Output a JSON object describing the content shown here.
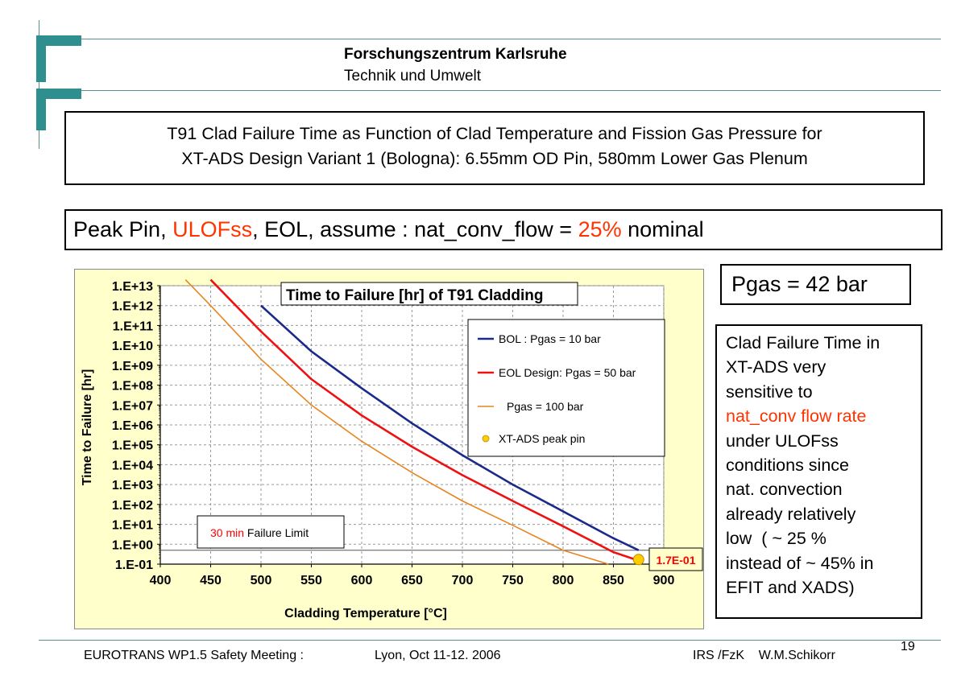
{
  "header": {
    "org_name": "Forschungszentrum Karlsruhe",
    "org_sub": "Technik und Umwelt"
  },
  "title": {
    "line1": "T91 Clad Failure Time as Function of Clad Temperature and Fission Gas Pressure for",
    "line2": "XT-ADS Design Variant 1 (Bologna): 6.55mm OD Pin, 580mm Lower Gas Plenum"
  },
  "subtitle": {
    "part1": "Peak Pin, ",
    "part2": "ULOFss",
    "part3": ", EOL, assume : nat_conv_flow = ",
    "part4": "25%",
    "part5": " nominal"
  },
  "pgas_label": "Pgas = 42 bar",
  "note": {
    "line1": "Clad Failure Time in",
    "line2": "XT-ADS very",
    "line3": "sensitive to",
    "line4": "nat_conv flow rate",
    "line5": "under ULOFss",
    "line6": "conditions since",
    "line7": "nat. convection",
    "line8": "already relatively",
    "line9": "low  ( ~ 25 %",
    "line10": "instead of ~ 45% in",
    "line11": "EFIT and XADS)"
  },
  "footer": {
    "meeting": "EUROTRANS WP1.5 Safety Meeting :",
    "place": "Lyon, Oct 11-12. 2006",
    "author": "IRS /FzK    W.M.Schikorr",
    "page": "19"
  },
  "colors": {
    "accent_red": "#ff3300",
    "logo": "#2f8e8e",
    "chart_bg": "#ffffcc"
  },
  "chart_data": {
    "type": "line",
    "title": "Time to Failure [hr] of T91 Cladding",
    "xlabel": "Cladding Temperature [°C]",
    "ylabel": "Time to Failure [hr]",
    "xlim": [
      400,
      900
    ],
    "ylim_log10": [
      -1,
      13
    ],
    "y_scale": "log",
    "grid": true,
    "legend_position": "top-right",
    "x_ticks": [
      "400",
      "450",
      "500",
      "550",
      "600",
      "650",
      "700",
      "750",
      "800",
      "850",
      "900"
    ],
    "y_ticks": [
      "1.E-01",
      "1.E+00",
      "1.E+01",
      "1.E+02",
      "1.E+03",
      "1.E+04",
      "1.E+05",
      "1.E+06",
      "1.E+07",
      "1.E+08",
      "1.E+09",
      "1.E+10",
      "1.E+11",
      "1.E+12",
      "1.E+13"
    ],
    "series": [
      {
        "name": "BOL : Pgas = 10 bar",
        "color": "#1a2a8a",
        "x": [
          500,
          550,
          600,
          650,
          700,
          750,
          800,
          850,
          875
        ],
        "y": [
          1000000000000.0,
          5000000000.0,
          70000000.0,
          1200000.0,
          30000.0,
          1000.0,
          45.0,
          2,
          0.5
        ]
      },
      {
        "name": "EOL Design: Pgas = 50 bar",
        "color": "#ee1111",
        "x": [
          450,
          500,
          550,
          600,
          650,
          700,
          750,
          800,
          850,
          875
        ],
        "y": [
          20000000000000.0,
          50000000000.0,
          200000000.0,
          3000000.0,
          80000.0,
          3000.0,
          150.0,
          8,
          0.4,
          0.15
        ]
      },
      {
        "name": "Pgas = 100 bar",
        "color": "#e8841e",
        "x": [
          425,
          450,
          500,
          550,
          600,
          650,
          700,
          750,
          800,
          845
        ],
        "y": [
          20000000000000.0,
          1000000000000.0,
          2000000000.0,
          10000000.0,
          150000.0,
          4000.0,
          150.0,
          9,
          0.5,
          0.1
        ]
      }
    ],
    "points": [
      {
        "name": "XT-ADS peak pin",
        "x": 875,
        "y": 0.17,
        "color": "#ffcc00",
        "label": "1.7E-01"
      }
    ],
    "annotation": {
      "part1": "30 min",
      "part2": " Failure Limit"
    },
    "failure_limit_hr": 0.5
  }
}
